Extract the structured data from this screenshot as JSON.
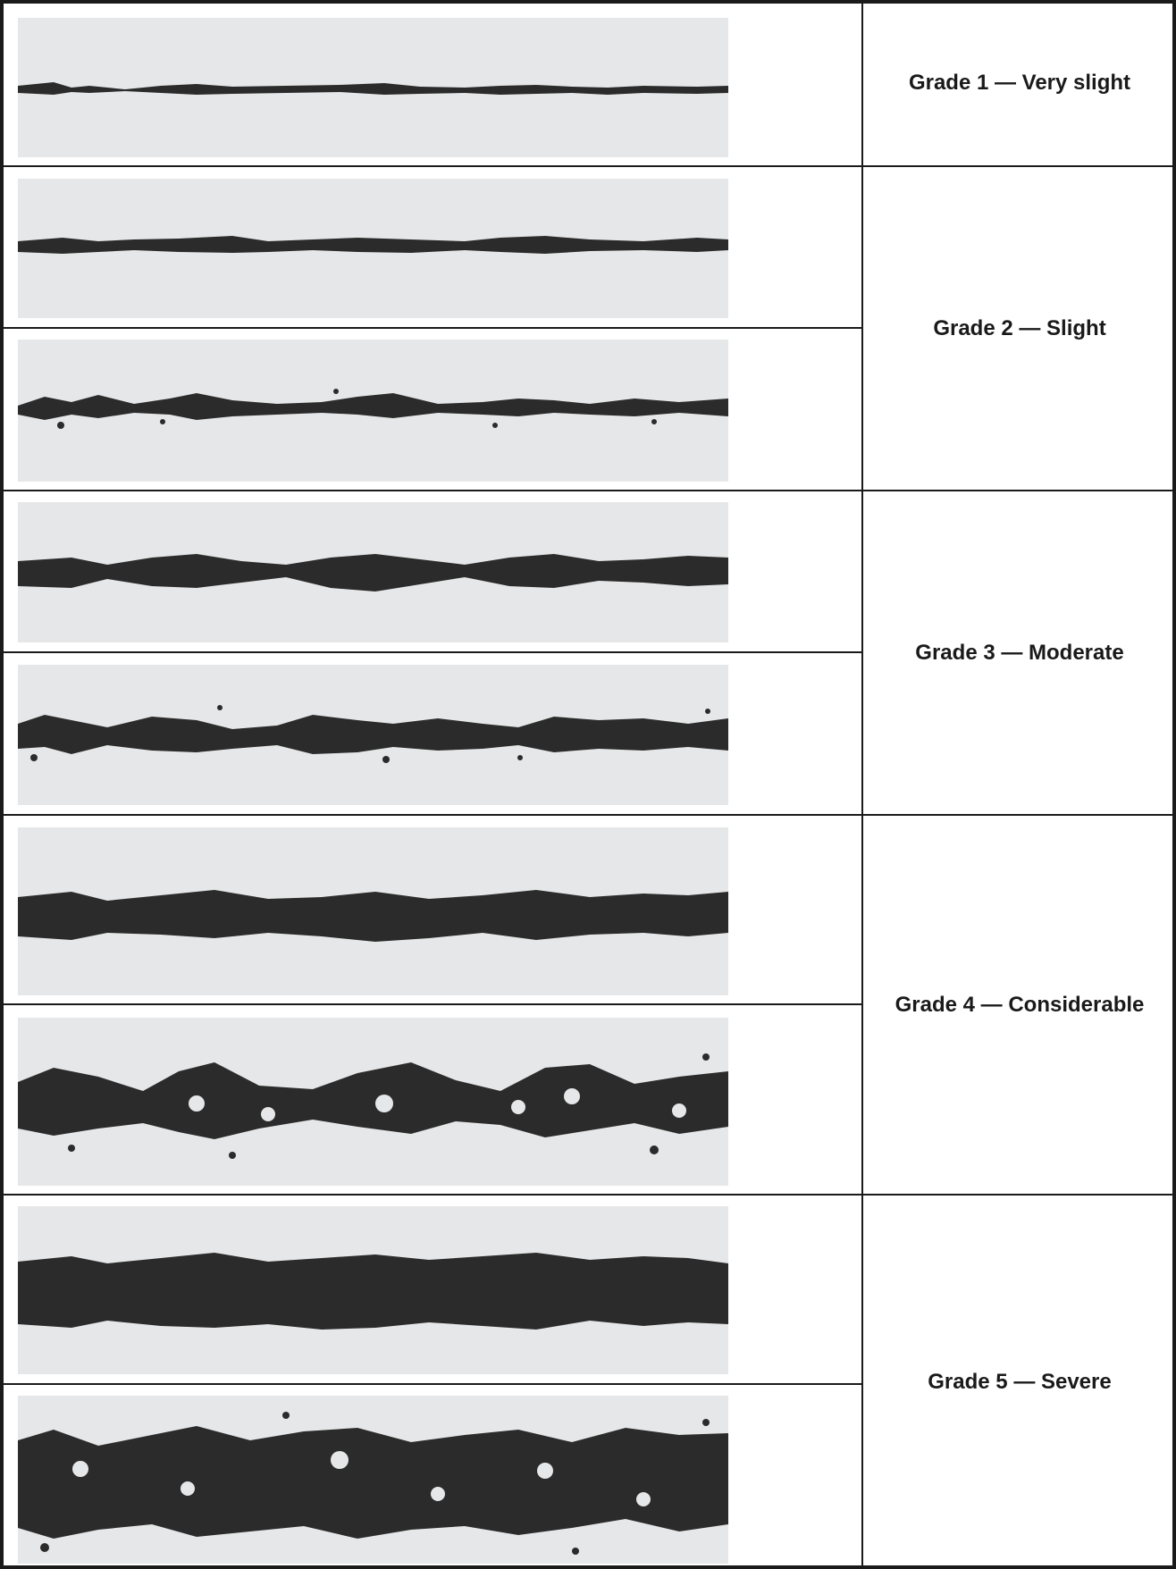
{
  "grades": [
    {
      "label": "Grade 1 — Very slight"
    },
    {
      "label": "Grade 2 — Slight"
    },
    {
      "label": "Grade 3 — Moderate"
    },
    {
      "label": "Grade 4 — Considerable"
    },
    {
      "label": "Grade 5 — Severe"
    }
  ],
  "colors": {
    "border": "#1a1a1a",
    "panel": "#e6e7e8",
    "band": "#2b2b2b",
    "label": "#1a1a1a"
  }
}
